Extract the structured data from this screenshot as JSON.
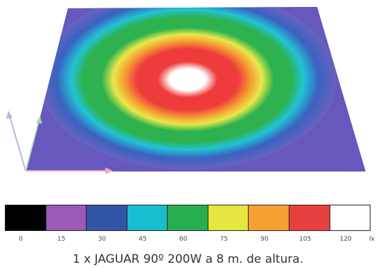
{
  "chart_data": {
    "type": "heatmap",
    "unit": "lx",
    "scale": [
      {
        "value": "0",
        "color": "#000000"
      },
      {
        "value": "15",
        "color": "#9b59b6"
      },
      {
        "value": "30",
        "color": "#3355a8"
      },
      {
        "value": "45",
        "color": "#17becf"
      },
      {
        "value": "60",
        "color": "#27ae4f"
      },
      {
        "value": "75",
        "color": "#e6e640"
      },
      {
        "value": "90",
        "color": "#f5a030"
      },
      {
        "value": "105",
        "color": "#e84040"
      },
      {
        "value": "120",
        "color": "#ffffff"
      }
    ],
    "caption": "1 x JAGUAR 90º 200W a 8 m. de altura."
  }
}
